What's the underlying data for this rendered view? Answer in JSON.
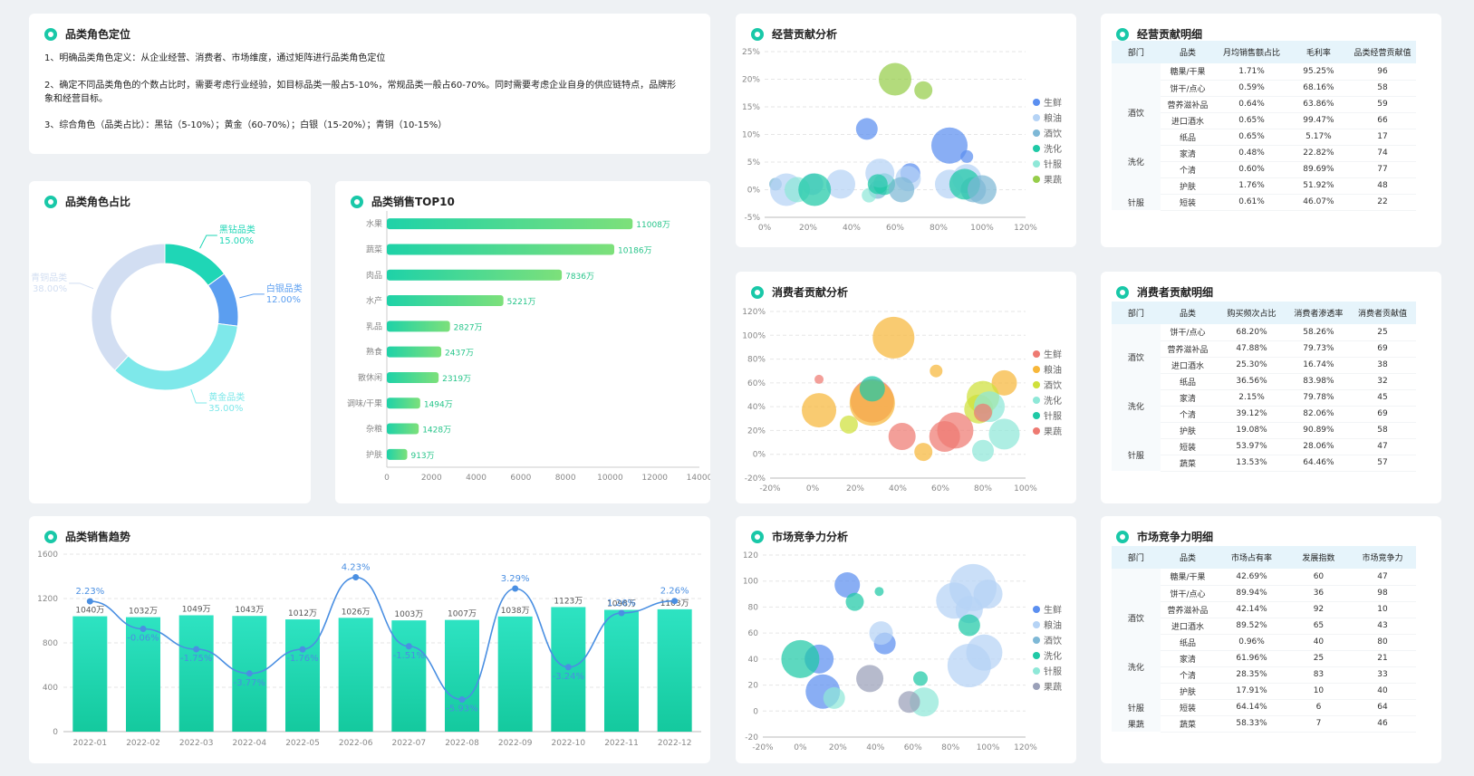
{
  "intro": {
    "title": "品类角色定位",
    "p1": "1、明确品类角色定义：从企业经营、消费者、市场维度，通过矩阵进行品类角色定位",
    "p2": "2、确定不同品类角色的个数占比时，需要考虑行业经验，如目标品类一般占5-10%，常规品类一般占60-70%。同时需要考虑企业自身的供应链特点，品牌形象和经营目标。",
    "p3": "3、综合角色（品类占比）：黑钻（5-10%）；黄金（60-70%）；白银（15-20%）；青铜（10-15%）"
  },
  "titles": {
    "share": "品类角色占比",
    "top10": "品类销售TOP10",
    "trend": "品类销售趋势",
    "op": "经营贡献分析",
    "opd": "经营贡献明细",
    "cons": "消费者贡献分析",
    "consd": "消费者贡献明细",
    "mkt": "市场竞争力分析",
    "mktd": "市场竞争力明细"
  },
  "chart_data": [
    {
      "id": "share",
      "type": "pie",
      "title": "品类角色占比",
      "slices": [
        {
          "name": "黑钻品类",
          "value": 15,
          "label": "15.00%",
          "color": "#1fd6b6"
        },
        {
          "name": "白银品类",
          "value": 12,
          "label": "12.00%",
          "color": "#5b9ef0"
        },
        {
          "name": "黄金品类",
          "value": 35,
          "label": "35.00%",
          "color": "#7ee8ea"
        },
        {
          "name": "青铜品类",
          "value": 38,
          "label": "38.00%",
          "color": "#d2def2"
        }
      ]
    },
    {
      "id": "top10",
      "type": "bar",
      "title": "品类销售TOP10",
      "categories": [
        "水果",
        "蔬菜",
        "肉品",
        "水产",
        "乳品",
        "熟食",
        "散休闲",
        "调味/干果",
        "杂粮",
        "护肤"
      ],
      "values": [
        11008,
        10186,
        7836,
        5221,
        2827,
        2437,
        2319,
        1494,
        1428,
        913
      ],
      "labels": [
        "11008万",
        "10186万",
        "7836万",
        "5221万",
        "2827万",
        "2437万",
        "2319万",
        "1494万",
        "1428万",
        "913万"
      ],
      "xlim": [
        0,
        14000
      ],
      "xticks": [
        "0",
        "2000",
        "4000",
        "6000",
        "8000",
        "10000",
        "12000",
        "14000"
      ]
    },
    {
      "id": "trend",
      "type": "bar",
      "title": "品类销售趋势",
      "categories": [
        "2022-01",
        "2022-02",
        "2022-03",
        "2022-04",
        "2022-05",
        "2022-06",
        "2022-07",
        "2022-08",
        "2022-09",
        "2022-10",
        "2022-11",
        "2022-12"
      ],
      "values": [
        1040,
        1032,
        1049,
        1043,
        1012,
        1026,
        1003,
        1007,
        1038,
        1123,
        1098,
        1103
      ],
      "labels": [
        "1040万",
        "1032万",
        "1049万",
        "1043万",
        "1012万",
        "1026万",
        "1003万",
        "1007万",
        "1038万",
        "1123万",
        "1098万",
        "1103万"
      ],
      "growth": [
        2.23,
        -0.06,
        -1.75,
        -3.77,
        -1.76,
        4.23,
        -1.51,
        -5.93,
        3.29,
        -3.24,
        1.26,
        2.26
      ],
      "growth_labels": [
        "2.23%",
        "-0.06%",
        "-1.75%",
        "-3.77%",
        "-1.76%",
        "4.23%",
        "-1.51%",
        "-5.93%",
        "3.29%",
        "-3.24%",
        "1.26%",
        "2.26%"
      ],
      "ylim": [
        0,
        1600
      ],
      "yticks": [
        "0",
        "400",
        "800",
        "1200",
        "1600"
      ]
    },
    {
      "id": "op",
      "type": "scatter",
      "title": "经营贡献分析",
      "xlim": [
        0,
        120
      ],
      "ylim": [
        -5,
        25
      ],
      "xticks": [
        "0%",
        "20%",
        "40%",
        "60%",
        "80%",
        "100%",
        "120%"
      ],
      "yticks": [
        "-5%",
        "0%",
        "5%",
        "10%",
        "15%",
        "20%",
        "25%"
      ],
      "legend": [
        {
          "name": "生鲜",
          "color": "#5b8ff0"
        },
        {
          "name": "粮油",
          "color": "#b5d3f5"
        },
        {
          "name": "酒饮",
          "color": "#7eb8d6"
        },
        {
          "name": "洗化",
          "color": "#1fc9a6"
        },
        {
          "name": "针服",
          "color": "#8fe8d8"
        },
        {
          "name": "果蔬",
          "color": "#96cd4a"
        }
      ],
      "points": [
        [
          5,
          1,
          7,
          2
        ],
        [
          10,
          0,
          18,
          1
        ],
        [
          22,
          1,
          12,
          1
        ],
        [
          15,
          0,
          14,
          4
        ],
        [
          35,
          1,
          16,
          1
        ],
        [
          52,
          0,
          10,
          2
        ],
        [
          48,
          -1,
          8,
          4
        ],
        [
          55,
          1,
          12,
          3
        ],
        [
          60,
          20,
          18,
          5
        ],
        [
          73,
          18,
          10,
          5
        ],
        [
          85,
          8,
          20,
          0
        ],
        [
          47,
          11,
          12,
          0
        ],
        [
          67,
          3,
          11,
          0
        ],
        [
          53,
          3,
          16,
          1
        ],
        [
          66,
          2,
          14,
          1
        ],
        [
          85,
          1,
          16,
          1
        ],
        [
          93,
          2,
          16,
          1
        ],
        [
          63,
          0,
          14,
          2
        ],
        [
          96,
          0,
          14,
          2
        ],
        [
          92,
          1,
          17,
          3
        ],
        [
          100,
          0,
          16,
          2
        ],
        [
          23,
          0,
          18,
          3
        ],
        [
          52,
          1,
          11,
          3
        ],
        [
          93,
          6,
          7,
          0
        ]
      ]
    },
    {
      "id": "cons",
      "type": "scatter",
      "title": "消费者贡献分析",
      "xlim": [
        -20,
        100
      ],
      "ylim": [
        -20,
        120
      ],
      "xticks": [
        "-20%",
        "0%",
        "20%",
        "40%",
        "60%",
        "80%",
        "100%"
      ],
      "yticks": [
        "-20%",
        "0%",
        "20%",
        "40%",
        "60%",
        "80%",
        "100%",
        "120%"
      ],
      "legend": [
        {
          "name": "生鲜",
          "color": "#ee7a72"
        },
        {
          "name": "粮油",
          "color": "#f7b73a"
        },
        {
          "name": "酒饮",
          "color": "#cfe03a"
        },
        {
          "name": "洗化",
          "color": "#8fe8d8"
        },
        {
          "name": "针服",
          "color": "#1fc9a6"
        },
        {
          "name": "果蔬",
          "color": "#ee7a72"
        }
      ],
      "points": [
        [
          3,
          63,
          5,
          0
        ],
        [
          28,
          45,
          24,
          0
        ],
        [
          38,
          98,
          23,
          1
        ],
        [
          3,
          37,
          19,
          1
        ],
        [
          28,
          43,
          25,
          1
        ],
        [
          52,
          2,
          10,
          1
        ],
        [
          58,
          70,
          7,
          1
        ],
        [
          90,
          60,
          14,
          1
        ],
        [
          17,
          25,
          10,
          2
        ],
        [
          80,
          48,
          18,
          2
        ],
        [
          78,
          38,
          16,
          2
        ],
        [
          28,
          55,
          14,
          4
        ],
        [
          83,
          40,
          17,
          3
        ],
        [
          90,
          17,
          17,
          3
        ],
        [
          80,
          3,
          12,
          3
        ],
        [
          42,
          15,
          15,
          0
        ],
        [
          62,
          15,
          17,
          0
        ],
        [
          67,
          20,
          20,
          0
        ],
        [
          80,
          35,
          10,
          5
        ]
      ]
    },
    {
      "id": "mkt",
      "type": "scatter",
      "title": "市场竞争力分析",
      "xlim": [
        -20,
        120
      ],
      "ylim": [
        -20,
        120
      ],
      "xticks": [
        "-20%",
        "0%",
        "20%",
        "40%",
        "60%",
        "80%",
        "100%",
        "120%"
      ],
      "yticks": [
        "-20",
        "0",
        "20",
        "40",
        "60",
        "80",
        "100",
        "120"
      ],
      "legend": [
        {
          "name": "生鲜",
          "color": "#5b8ff0"
        },
        {
          "name": "粮油",
          "color": "#b5d3f5"
        },
        {
          "name": "酒饮",
          "color": "#7eb8d6"
        },
        {
          "name": "洗化",
          "color": "#1fc9a6"
        },
        {
          "name": "针服",
          "color": "#8fe8d8"
        },
        {
          "name": "果蔬",
          "color": "#9aa0b8"
        }
      ],
      "points": [
        [
          25,
          97,
          14,
          0
        ],
        [
          12,
          15,
          19,
          0
        ],
        [
          45,
          52,
          12,
          0
        ],
        [
          10,
          40,
          16,
          0
        ],
        [
          92,
          95,
          26,
          1
        ],
        [
          82,
          85,
          20,
          1
        ],
        [
          100,
          90,
          16,
          1
        ],
        [
          90,
          78,
          15,
          1
        ],
        [
          98,
          45,
          20,
          1
        ],
        [
          90,
          35,
          24,
          1
        ],
        [
          43,
          60,
          13,
          1
        ],
        [
          29,
          84,
          10,
          3
        ],
        [
          0,
          40,
          21,
          3
        ],
        [
          64,
          25,
          8,
          3
        ],
        [
          90,
          66,
          12,
          3
        ],
        [
          42,
          92,
          5,
          3
        ],
        [
          18,
          10,
          12,
          4
        ],
        [
          66,
          7,
          16,
          4
        ],
        [
          58,
          7,
          12,
          5
        ],
        [
          37,
          25,
          15,
          5
        ]
      ]
    }
  ],
  "op_table": {
    "headers": [
      "部门",
      "品类",
      "月均销售额占比",
      "毛利率",
      "品类经营贡献值"
    ],
    "groups": [
      {
        "dept": "",
        "rows": [
          [
            "糖果/干果",
            "1.71%",
            "95.25%",
            "96"
          ],
          [
            "饼干/点心",
            "0.59%",
            "68.16%",
            "58"
          ]
        ]
      },
      {
        "dept": "酒饮",
        "rows": [
          [
            "营养滋补品",
            "0.64%",
            "63.86%",
            "59"
          ],
          [
            "进口酒水",
            "0.65%",
            "99.47%",
            "66"
          ]
        ]
      },
      {
        "dept": "洗化",
        "rows": [
          [
            "纸品",
            "0.65%",
            "5.17%",
            "17"
          ],
          [
            "家清",
            "0.48%",
            "22.82%",
            "74"
          ],
          [
            "个清",
            "0.60%",
            "89.69%",
            "77"
          ],
          [
            "护肤",
            "1.76%",
            "51.92%",
            "48"
          ]
        ]
      },
      {
        "dept": "针服",
        "rows": [
          [
            "短装",
            "0.61%",
            "46.07%",
            "22"
          ]
        ]
      }
    ]
  },
  "cons_table": {
    "headers": [
      "部门",
      "品类",
      "购买频次占比",
      "消费者渗透率",
      "消费者贡献值"
    ],
    "groups": [
      {
        "dept": "",
        "rows": [
          [
            "饼干/点心",
            "68.20%",
            "58.26%",
            "25"
          ]
        ]
      },
      {
        "dept": "酒饮",
        "rows": [
          [
            "营养滋补品",
            "47.88%",
            "79.73%",
            "69"
          ],
          [
            "进口酒水",
            "25.30%",
            "16.74%",
            "38"
          ]
        ]
      },
      {
        "dept": "洗化",
        "rows": [
          [
            "纸品",
            "36.56%",
            "83.98%",
            "32"
          ],
          [
            "家清",
            "2.15%",
            "79.78%",
            "45"
          ],
          [
            "个清",
            "39.12%",
            "82.06%",
            "69"
          ],
          [
            "护肤",
            "19.08%",
            "90.89%",
            "58"
          ]
        ]
      },
      {
        "dept": "针服",
        "rows": [
          [
            "短装",
            "53.97%",
            "28.06%",
            "47"
          ],
          [
            "蔬菜",
            "13.53%",
            "64.46%",
            "57"
          ]
        ]
      }
    ]
  },
  "mkt_table": {
    "headers": [
      "部门",
      "品类",
      "市场占有率",
      "发展指数",
      "市场竞争力"
    ],
    "groups": [
      {
        "dept": "",
        "rows": [
          [
            "糖果/干果",
            "42.69%",
            "60",
            "47"
          ],
          [
            "饼干/点心",
            "89.94%",
            "36",
            "98"
          ]
        ]
      },
      {
        "dept": "酒饮",
        "rows": [
          [
            "营养滋补品",
            "42.14%",
            "92",
            "10"
          ],
          [
            "进口酒水",
            "89.52%",
            "65",
            "43"
          ]
        ]
      },
      {
        "dept": "洗化",
        "rows": [
          [
            "纸品",
            "0.96%",
            "40",
            "80"
          ],
          [
            "家清",
            "61.96%",
            "25",
            "21"
          ],
          [
            "个清",
            "28.35%",
            "83",
            "33"
          ],
          [
            "护肤",
            "17.91%",
            "10",
            "40"
          ]
        ]
      },
      {
        "dept": "针服",
        "rows": [
          [
            "短装",
            "64.14%",
            "6",
            "64"
          ]
        ]
      },
      {
        "dept": "果蔬",
        "rows": [
          [
            "蔬菜",
            "58.33%",
            "7",
            "46"
          ]
        ]
      }
    ]
  }
}
